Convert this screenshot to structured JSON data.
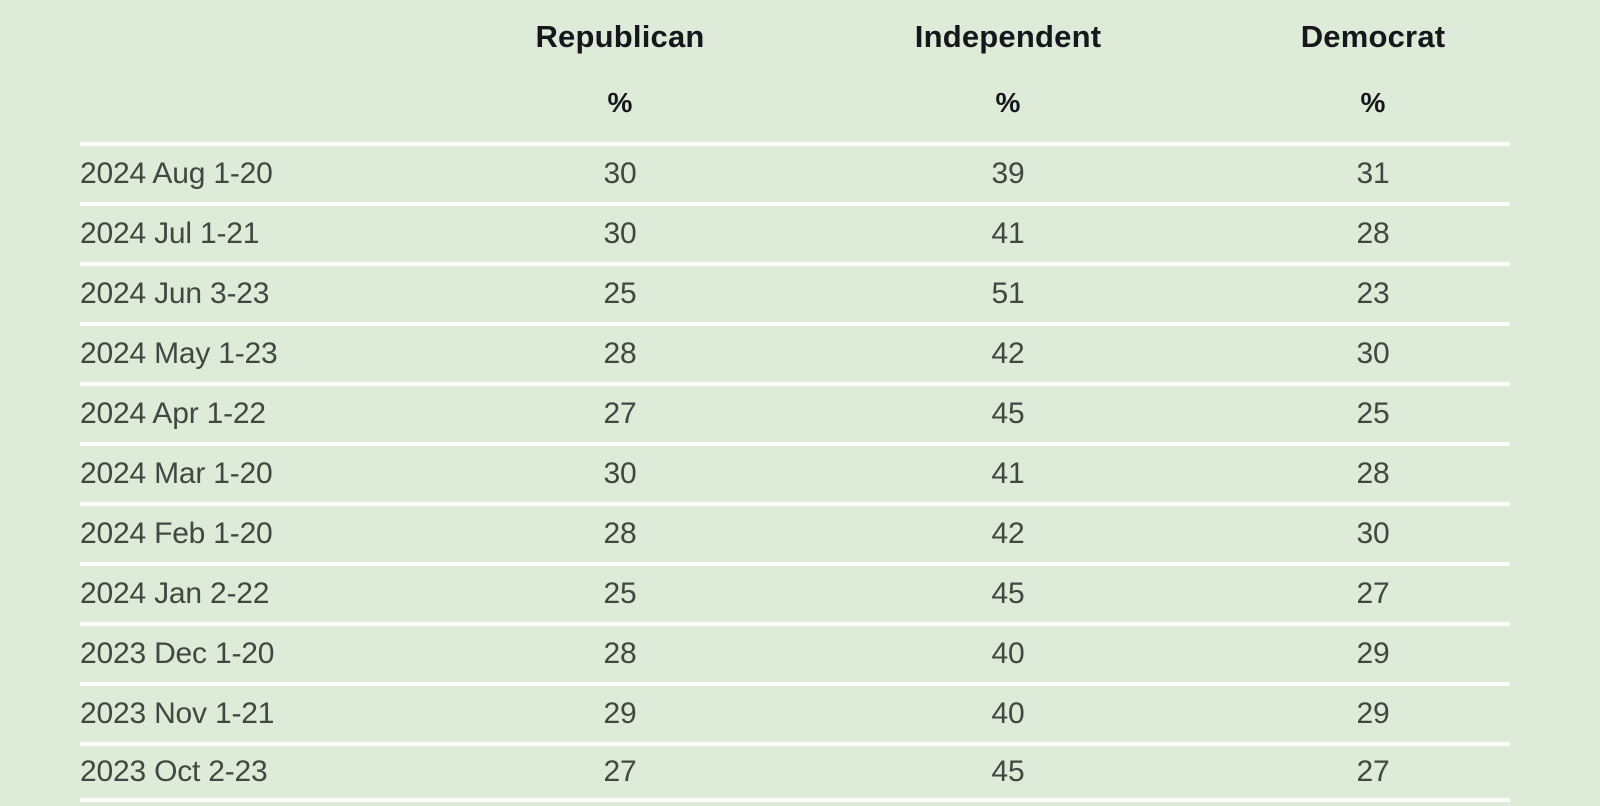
{
  "colors": {
    "background": "#dfebd9",
    "separator": "#fbfdf8",
    "header_text": "#14171b",
    "body_text": "#3f4841"
  },
  "chart_data": {
    "type": "table",
    "description": "Party affiliation by polling period",
    "legend_position": "none",
    "grid": "horizontal-white-separators",
    "columns": [
      {
        "key": "period",
        "label": "",
        "unit": ""
      },
      {
        "key": "republican",
        "label": "Republican",
        "unit": "%"
      },
      {
        "key": "independent",
        "label": "Independent",
        "unit": "%"
      },
      {
        "key": "democrat",
        "label": "Democrat",
        "unit": "%"
      }
    ],
    "rows": [
      {
        "period": "2024 Aug 1-20",
        "republican": 30,
        "independent": 39,
        "democrat": 31
      },
      {
        "period": "2024 Jul 1-21",
        "republican": 30,
        "independent": 41,
        "democrat": 28
      },
      {
        "period": "2024 Jun 3-23",
        "republican": 25,
        "independent": 51,
        "democrat": 23
      },
      {
        "period": "2024 May 1-23",
        "republican": 28,
        "independent": 42,
        "democrat": 30
      },
      {
        "period": "2024 Apr 1-22",
        "republican": 27,
        "independent": 45,
        "democrat": 25
      },
      {
        "period": "2024 Mar 1-20",
        "republican": 30,
        "independent": 41,
        "democrat": 28
      },
      {
        "period": "2024 Feb 1-20",
        "republican": 28,
        "independent": 42,
        "democrat": 30
      },
      {
        "period": "2024 Jan 2-22",
        "republican": 25,
        "independent": 45,
        "democrat": 27
      },
      {
        "period": "2023 Dec 1-20",
        "republican": 28,
        "independent": 40,
        "democrat": 29
      },
      {
        "period": "2023 Nov 1-21",
        "republican": 29,
        "independent": 40,
        "democrat": 29
      },
      {
        "period": "2023 Oct 2-23",
        "republican": 27,
        "independent": 45,
        "democrat": 27
      }
    ]
  }
}
